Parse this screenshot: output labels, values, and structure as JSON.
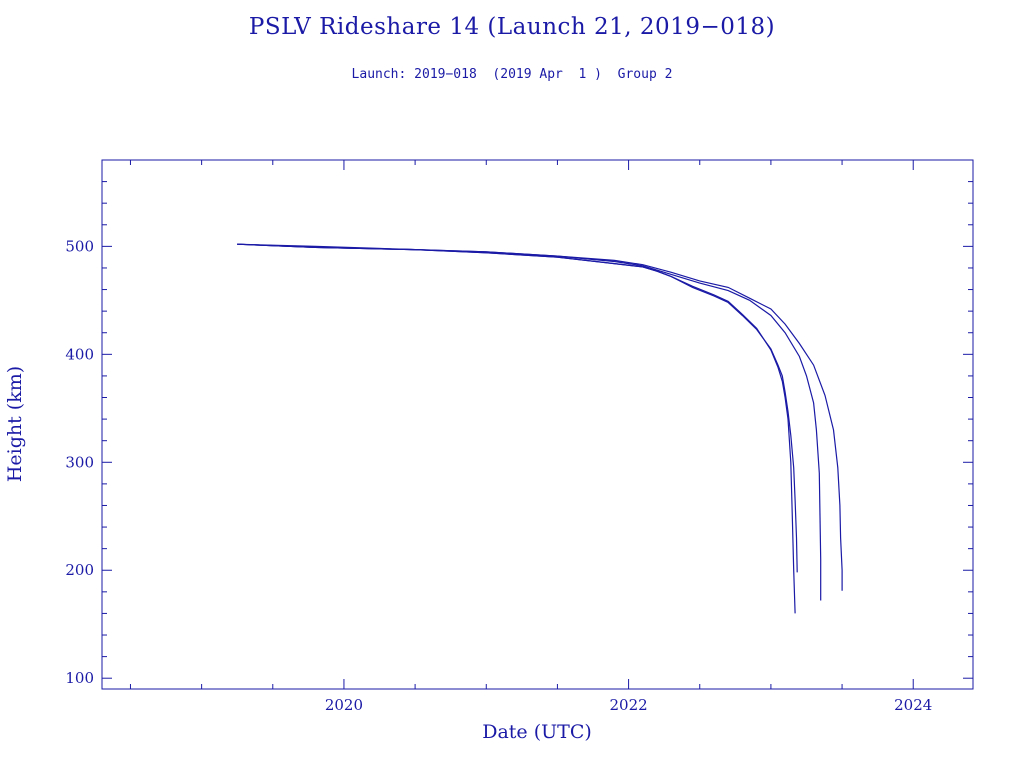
{
  "chart_data": {
    "type": "line",
    "title": "PSLV Rideshare 14 (Launch 21, 2019−018)",
    "subtitle": "Launch: 2019−018  (2019 Apr  1 )  Group 2",
    "xlabel": "Date (UTC)",
    "ylabel": "Height (km)",
    "xlim": [
      2018.3,
      2024.42
    ],
    "ylim": [
      90,
      580
    ],
    "x_major_ticks": [
      2020,
      2022,
      2024
    ],
    "y_major_ticks": [
      100,
      200,
      300,
      400,
      500
    ],
    "grid": false,
    "color": "#1a1aa6",
    "series": [
      {
        "points": [
          [
            2019.25,
            502
          ],
          [
            2019.8,
            499
          ],
          [
            2020.5,
            497
          ],
          [
            2021.0,
            494
          ],
          [
            2021.5,
            490
          ],
          [
            2021.9,
            484
          ],
          [
            2022.1,
            481
          ],
          [
            2022.2,
            477
          ],
          [
            2022.3,
            472
          ],
          [
            2022.45,
            462
          ],
          [
            2022.6,
            454
          ],
          [
            2022.7,
            448
          ],
          [
            2022.8,
            436
          ],
          [
            2022.9,
            423
          ],
          [
            2023.0,
            405
          ],
          [
            2023.05,
            390
          ],
          [
            2023.08,
            380
          ],
          [
            2023.1,
            365
          ],
          [
            2023.12,
            347
          ],
          [
            2023.14,
            325
          ],
          [
            2023.16,
            295
          ],
          [
            2023.17,
            265
          ],
          [
            2023.18,
            230
          ],
          [
            2023.185,
            198
          ]
        ]
      },
      {
        "points": [
          [
            2019.25,
            502
          ],
          [
            2019.8,
            499
          ],
          [
            2020.5,
            497
          ],
          [
            2021.0,
            494
          ],
          [
            2021.5,
            490
          ],
          [
            2021.9,
            484
          ],
          [
            2022.1,
            481
          ],
          [
            2022.2,
            477
          ],
          [
            2022.3,
            472
          ],
          [
            2022.45,
            463
          ],
          [
            2022.6,
            455
          ],
          [
            2022.7,
            449
          ],
          [
            2022.8,
            437
          ],
          [
            2022.9,
            424
          ],
          [
            2023.0,
            404
          ],
          [
            2023.05,
            388
          ],
          [
            2023.08,
            375
          ],
          [
            2023.1,
            360
          ],
          [
            2023.12,
            340
          ],
          [
            2023.14,
            300
          ],
          [
            2023.15,
            250
          ],
          [
            2023.16,
            200
          ],
          [
            2023.17,
            160
          ]
        ]
      },
      {
        "points": [
          [
            2019.25,
            502
          ],
          [
            2019.8,
            499
          ],
          [
            2020.5,
            497
          ],
          [
            2021.0,
            495
          ],
          [
            2021.5,
            491
          ],
          [
            2021.9,
            486
          ],
          [
            2022.1,
            482
          ],
          [
            2022.3,
            474
          ],
          [
            2022.5,
            466
          ],
          [
            2022.7,
            459
          ],
          [
            2022.85,
            450
          ],
          [
            2023.0,
            436
          ],
          [
            2023.1,
            420
          ],
          [
            2023.2,
            398
          ],
          [
            2023.25,
            380
          ],
          [
            2023.3,
            355
          ],
          [
            2023.32,
            330
          ],
          [
            2023.34,
            290
          ],
          [
            2023.345,
            250
          ],
          [
            2023.35,
            210
          ],
          [
            2023.35,
            172
          ]
        ]
      },
      {
        "points": [
          [
            2019.25,
            502
          ],
          [
            2019.8,
            500
          ],
          [
            2020.5,
            497
          ],
          [
            2021.0,
            495
          ],
          [
            2021.5,
            491
          ],
          [
            2021.9,
            487
          ],
          [
            2022.1,
            483
          ],
          [
            2022.3,
            476
          ],
          [
            2022.5,
            468
          ],
          [
            2022.7,
            462
          ],
          [
            2022.85,
            452
          ],
          [
            2023.0,
            442
          ],
          [
            2023.1,
            428
          ],
          [
            2023.2,
            410
          ],
          [
            2023.3,
            390
          ],
          [
            2023.38,
            362
          ],
          [
            2023.44,
            330
          ],
          [
            2023.47,
            295
          ],
          [
            2023.485,
            260
          ],
          [
            2023.49,
            230
          ],
          [
            2023.5,
            200
          ],
          [
            2023.5,
            181
          ]
        ]
      }
    ]
  }
}
